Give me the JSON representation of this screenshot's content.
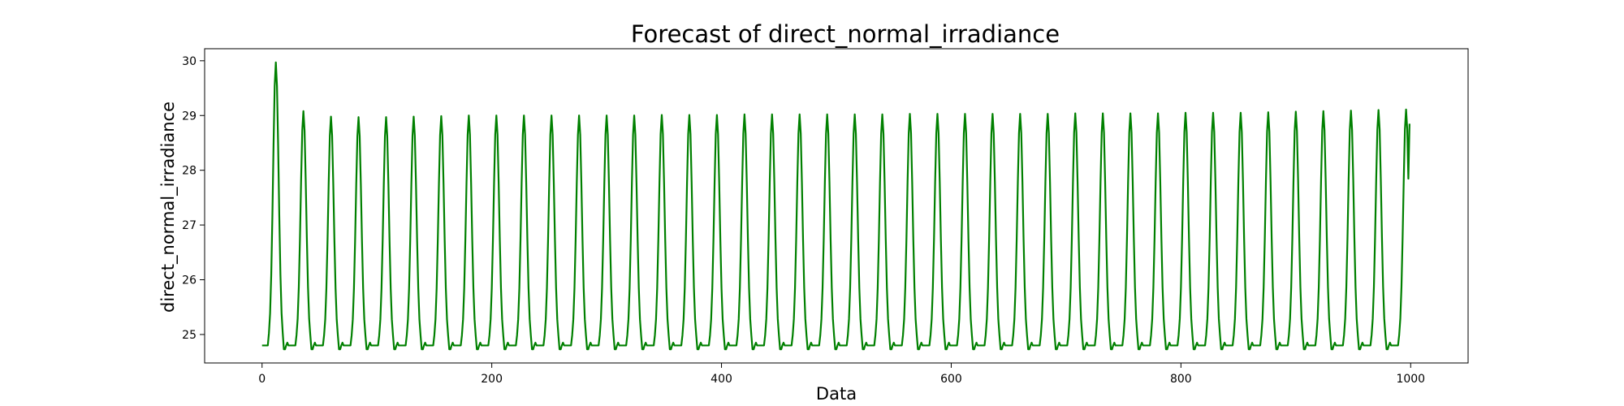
{
  "chart_data": {
    "type": "line",
    "title": "Forecast of direct_normal_irradiance",
    "xlabel": "Data",
    "ylabel": "direct_normal_irradiance",
    "xlim": [
      -50,
      1050
    ],
    "ylim": [
      24.48,
      30.22
    ],
    "xticks": [
      0,
      200,
      400,
      600,
      800,
      1000
    ],
    "yticks": [
      25,
      26,
      27,
      28,
      29,
      30
    ],
    "grid": false,
    "legend": "none",
    "series_color": "#008000",
    "x_range": [
      0,
      999
    ],
    "period": 24,
    "baseline": 24.8,
    "trough": 24.73,
    "peak_x": [
      12,
      36,
      60,
      84,
      108,
      132,
      156,
      180,
      204,
      228,
      252,
      276,
      300,
      324,
      348,
      372,
      396,
      420,
      444,
      468,
      492,
      516,
      540,
      564,
      588,
      612,
      636,
      660,
      684,
      708,
      732,
      756,
      780,
      804,
      828,
      852,
      876,
      900,
      924,
      948,
      972,
      996
    ],
    "peak_y": [
      29.97,
      29.08,
      28.98,
      28.97,
      28.97,
      28.98,
      28.99,
      29.0,
      29.0,
      29.0,
      29.0,
      29.0,
      29.0,
      29.0,
      29.01,
      29.01,
      29.01,
      29.02,
      29.02,
      29.02,
      29.02,
      29.02,
      29.02,
      29.03,
      29.03,
      29.03,
      29.03,
      29.03,
      29.03,
      29.04,
      29.04,
      29.04,
      29.04,
      29.05,
      29.05,
      29.05,
      29.06,
      29.07,
      29.08,
      29.09,
      29.1,
      29.11
    ],
    "last_point": [
      999,
      28.85
    ]
  }
}
